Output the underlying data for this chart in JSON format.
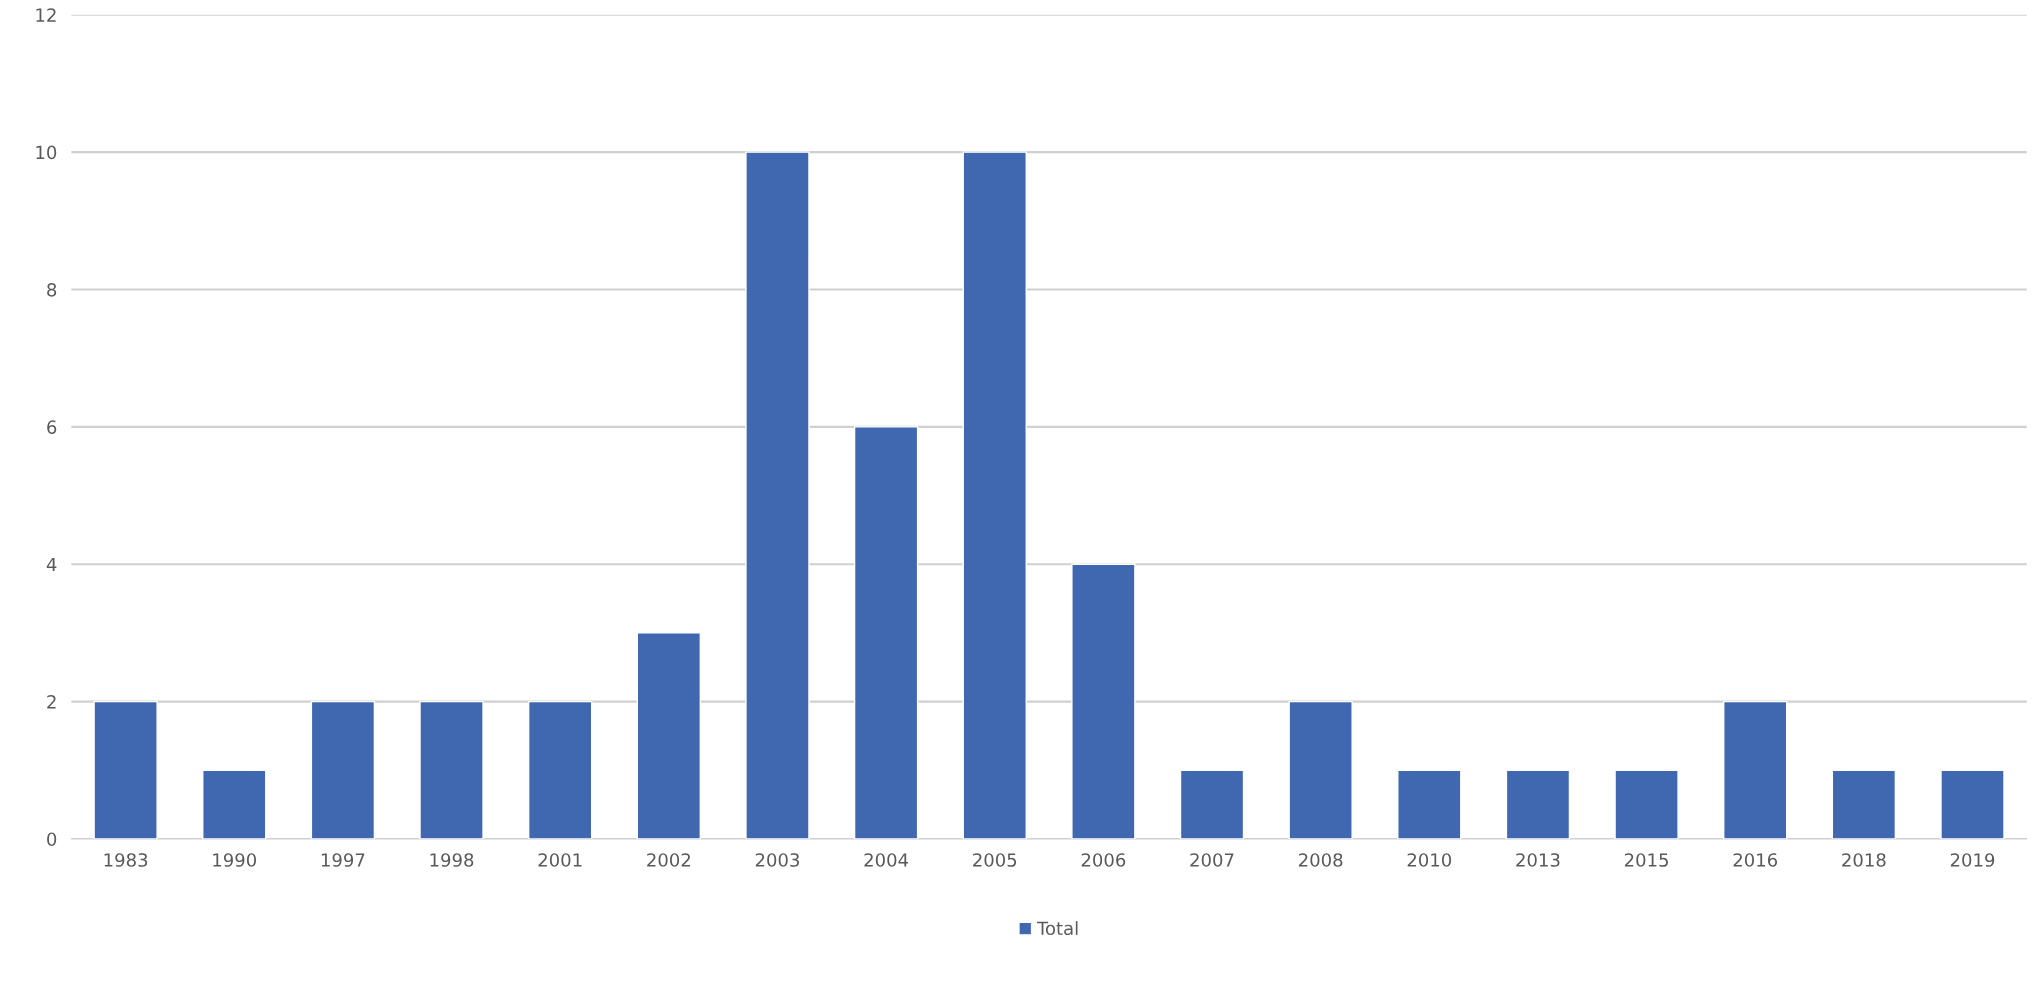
{
  "chart_data": {
    "type": "bar",
    "categories": [
      "1983",
      "1990",
      "1997",
      "1998",
      "2001",
      "2002",
      "2003",
      "2004",
      "2005",
      "2006",
      "2007",
      "2008",
      "2010",
      "2013",
      "2015",
      "2016",
      "2018",
      "2019"
    ],
    "series": [
      {
        "name": "Total",
        "color": "#4068b0",
        "values": [
          2,
          1,
          2,
          2,
          2,
          3,
          10,
          6,
          10,
          4,
          1,
          2,
          1,
          1,
          1,
          2,
          1,
          1
        ]
      }
    ],
    "ylim": [
      0,
      12
    ],
    "yticks": [
      0,
      2,
      4,
      6,
      8,
      10,
      12
    ],
    "grid": "y",
    "legend": "bottom"
  }
}
